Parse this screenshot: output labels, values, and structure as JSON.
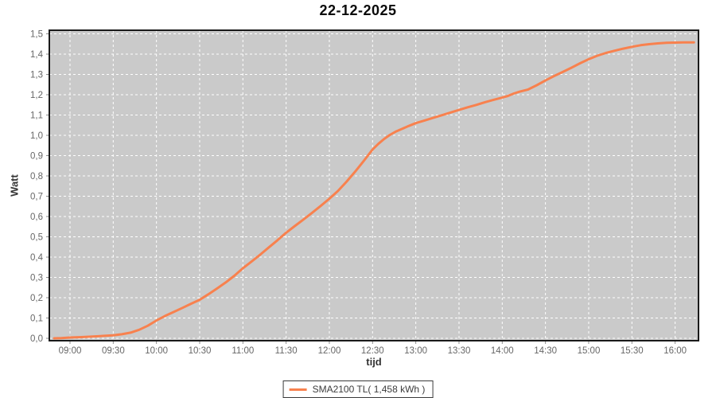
{
  "title": "22-12-2025",
  "legend": {
    "label": "SMA2100 TL( 1,458 kWh )"
  },
  "chart_data": {
    "type": "line",
    "title": "22-12-2025",
    "xlabel": "tijd",
    "ylabel": "Watt",
    "ylim": [
      0.0,
      1.5
    ],
    "grid": true,
    "legend_position": "bottom-center",
    "plot_bg_color": "#cacaca",
    "grid_color": "#ffffff",
    "plot_border_color": "#1a1a1a",
    "tick_color": "#8a8a8a",
    "tick_label_color": "#666666",
    "y_tick_values": [
      0.0,
      0.1,
      0.2,
      0.3,
      0.4,
      0.5,
      0.6,
      0.7,
      0.8,
      0.9,
      1.0,
      1.1,
      1.2,
      1.3,
      1.4,
      1.5
    ],
    "y_tick_labels": [
      "0,0",
      "0,1",
      "0,2",
      "0,3",
      "0,4",
      "0,5",
      "0,6",
      "0,7",
      "0,8",
      "0,9",
      "1,0",
      "1,1",
      "1,2",
      "1,3",
      "1,4",
      "1,5"
    ],
    "x_tick_minutes": [
      540,
      570,
      600,
      630,
      660,
      690,
      720,
      750,
      780,
      810,
      840,
      870,
      900,
      930,
      960
    ],
    "x_tick_labels": [
      "09:00",
      "09:30",
      "10:00",
      "10:30",
      "11:00",
      "11:30",
      "12:00",
      "12:30",
      "13:00",
      "13:30",
      "14:00",
      "14:30",
      "15:00",
      "15:30",
      "16:00"
    ],
    "series": [
      {
        "name": "SMA2100 TL( 1,458 kWh )",
        "color": "#f8814e",
        "total": "1,458 kWh",
        "points": [
          [
            529,
            0.0
          ],
          [
            534,
            0.001
          ],
          [
            540,
            0.004
          ],
          [
            548,
            0.006
          ],
          [
            556,
            0.009
          ],
          [
            564,
            0.012
          ],
          [
            570,
            0.015
          ],
          [
            576,
            0.02
          ],
          [
            582,
            0.028
          ],
          [
            588,
            0.042
          ],
          [
            594,
            0.062
          ],
          [
            600,
            0.088
          ],
          [
            606,
            0.11
          ],
          [
            612,
            0.13
          ],
          [
            618,
            0.15
          ],
          [
            624,
            0.17
          ],
          [
            630,
            0.19
          ],
          [
            636,
            0.217
          ],
          [
            642,
            0.245
          ],
          [
            648,
            0.275
          ],
          [
            654,
            0.308
          ],
          [
            660,
            0.345
          ],
          [
            666,
            0.378
          ],
          [
            672,
            0.412
          ],
          [
            678,
            0.448
          ],
          [
            684,
            0.483
          ],
          [
            690,
            0.52
          ],
          [
            696,
            0.553
          ],
          [
            702,
            0.585
          ],
          [
            708,
            0.618
          ],
          [
            714,
            0.652
          ],
          [
            720,
            0.688
          ],
          [
            726,
            0.726
          ],
          [
            732,
            0.772
          ],
          [
            738,
            0.822
          ],
          [
            744,
            0.875
          ],
          [
            750,
            0.93
          ],
          [
            754,
            0.958
          ],
          [
            758,
            0.982
          ],
          [
            762,
            1.002
          ],
          [
            766,
            1.018
          ],
          [
            770,
            1.03
          ],
          [
            775,
            1.046
          ],
          [
            780,
            1.06
          ],
          [
            786,
            1.073
          ],
          [
            792,
            1.086
          ],
          [
            798,
            1.099
          ],
          [
            804,
            1.112
          ],
          [
            810,
            1.125
          ],
          [
            816,
            1.138
          ],
          [
            822,
            1.15
          ],
          [
            828,
            1.163
          ],
          [
            834,
            1.175
          ],
          [
            840,
            1.186
          ],
          [
            844,
            1.194
          ],
          [
            848,
            1.206
          ],
          [
            852,
            1.215
          ],
          [
            858,
            1.226
          ],
          [
            864,
            1.247
          ],
          [
            870,
            1.27
          ],
          [
            876,
            1.292
          ],
          [
            882,
            1.312
          ],
          [
            888,
            1.333
          ],
          [
            894,
            1.355
          ],
          [
            900,
            1.375
          ],
          [
            906,
            1.392
          ],
          [
            912,
            1.406
          ],
          [
            918,
            1.417
          ],
          [
            924,
            1.427
          ],
          [
            930,
            1.436
          ],
          [
            936,
            1.444
          ],
          [
            942,
            1.449
          ],
          [
            948,
            1.453
          ],
          [
            954,
            1.456
          ],
          [
            960,
            1.457
          ],
          [
            966,
            1.458
          ],
          [
            973,
            1.458
          ]
        ]
      }
    ]
  }
}
